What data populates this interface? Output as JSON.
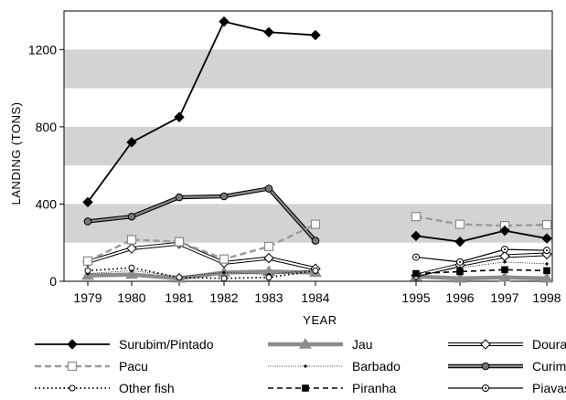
{
  "chart_data": {
    "type": "line",
    "title": "",
    "xlabel": "YEAR",
    "ylabel": "LANDING (TONS)",
    "ylim": [
      0,
      1400
    ],
    "yticks": [
      0,
      400,
      800,
      1200
    ],
    "grid": "alternating horizontal gray bands every 200 tons",
    "legend_position": "bottom",
    "x": [
      "1979",
      "1980",
      "1981",
      "1982",
      "1983",
      "1984",
      "1995",
      "1996",
      "1997",
      "1998"
    ],
    "series": [
      {
        "name": "Surubim/Pintado",
        "color": "#000000",
        "values": [
          410,
          720,
          850,
          1345,
          1290,
          1275,
          235,
          205,
          262,
          222
        ]
      },
      {
        "name": "Pacu",
        "color": "#999999",
        "values": [
          105,
          215,
          205,
          115,
          180,
          295,
          335,
          295,
          288,
          293
        ]
      },
      {
        "name": "Other fish",
        "color": "#000000",
        "values": [
          55,
          70,
          20,
          15,
          20,
          55,
          null,
          null,
          null,
          null
        ]
      },
      {
        "name": "Jau",
        "color": "#8c8c8c",
        "values": [
          30,
          35,
          15,
          45,
          50,
          45,
          25,
          15,
          20,
          15
        ]
      },
      {
        "name": "Barbado",
        "color": "#000000",
        "values": [
          40,
          55,
          25,
          45,
          35,
          60,
          30,
          70,
          100,
          90
        ]
      },
      {
        "name": "Piranha",
        "color": "#000000",
        "values": [
          null,
          null,
          null,
          null,
          null,
          null,
          40,
          50,
          60,
          55
        ]
      },
      {
        "name": "Dourado",
        "color": "#000000",
        "values": [
          100,
          170,
          195,
          95,
          120,
          65,
          30,
          85,
          130,
          140
        ]
      },
      {
        "name": "Curimbata",
        "color": "#666666",
        "values": [
          310,
          335,
          435,
          440,
          480,
          210,
          null,
          null,
          null,
          null
        ]
      },
      {
        "name": "Piavassu",
        "color": "#000000",
        "values": [
          null,
          null,
          null,
          null,
          null,
          null,
          125,
          100,
          165,
          160
        ]
      }
    ]
  }
}
